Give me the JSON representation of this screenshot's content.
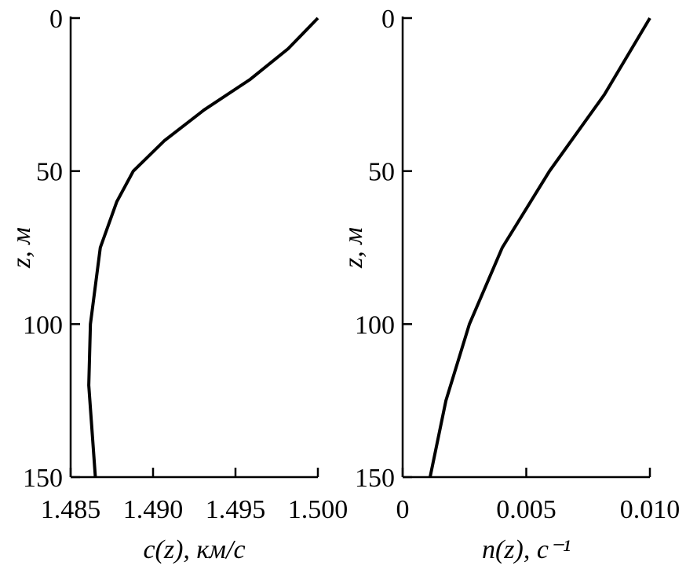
{
  "chart_data": [
    {
      "type": "line",
      "xlabel": "c(z), км/с",
      "ylabel": "z, м",
      "x": [
        1.5,
        1.4982,
        1.4959,
        1.4931,
        1.4907,
        1.4888,
        1.4878,
        1.4868,
        1.4862,
        1.4861,
        1.4865
      ],
      "y": [
        0,
        10,
        20,
        30,
        40,
        50,
        60,
        75,
        100,
        120,
        150
      ],
      "color": "#000000",
      "xlim": [
        1.485,
        1.5
      ],
      "ylim": [
        150,
        0
      ],
      "xticks": [
        1.485,
        {
          "value": 1.49,
          "label": "1.490"
        },
        1.495,
        {
          "value": 1.5,
          "label": "1.500"
        }
      ],
      "yticks": [
        0,
        50,
        100,
        150
      ]
    },
    {
      "type": "line",
      "xlabel": "n(z), с⁻¹",
      "ylabel": "z, м",
      "x": [
        0.01,
        0.00816,
        0.00594,
        0.00403,
        0.0027,
        0.00175,
        0.00111
      ],
      "y": [
        0,
        25,
        50,
        75,
        100,
        125,
        150
      ],
      "color": "#000000",
      "xlim": [
        0,
        0.01
      ],
      "ylim": [
        150,
        0
      ],
      "xticks": [
        0,
        0.005,
        {
          "value": 0.01,
          "label": "0.010"
        }
      ],
      "yticks": [
        0,
        50,
        100,
        150
      ]
    }
  ]
}
